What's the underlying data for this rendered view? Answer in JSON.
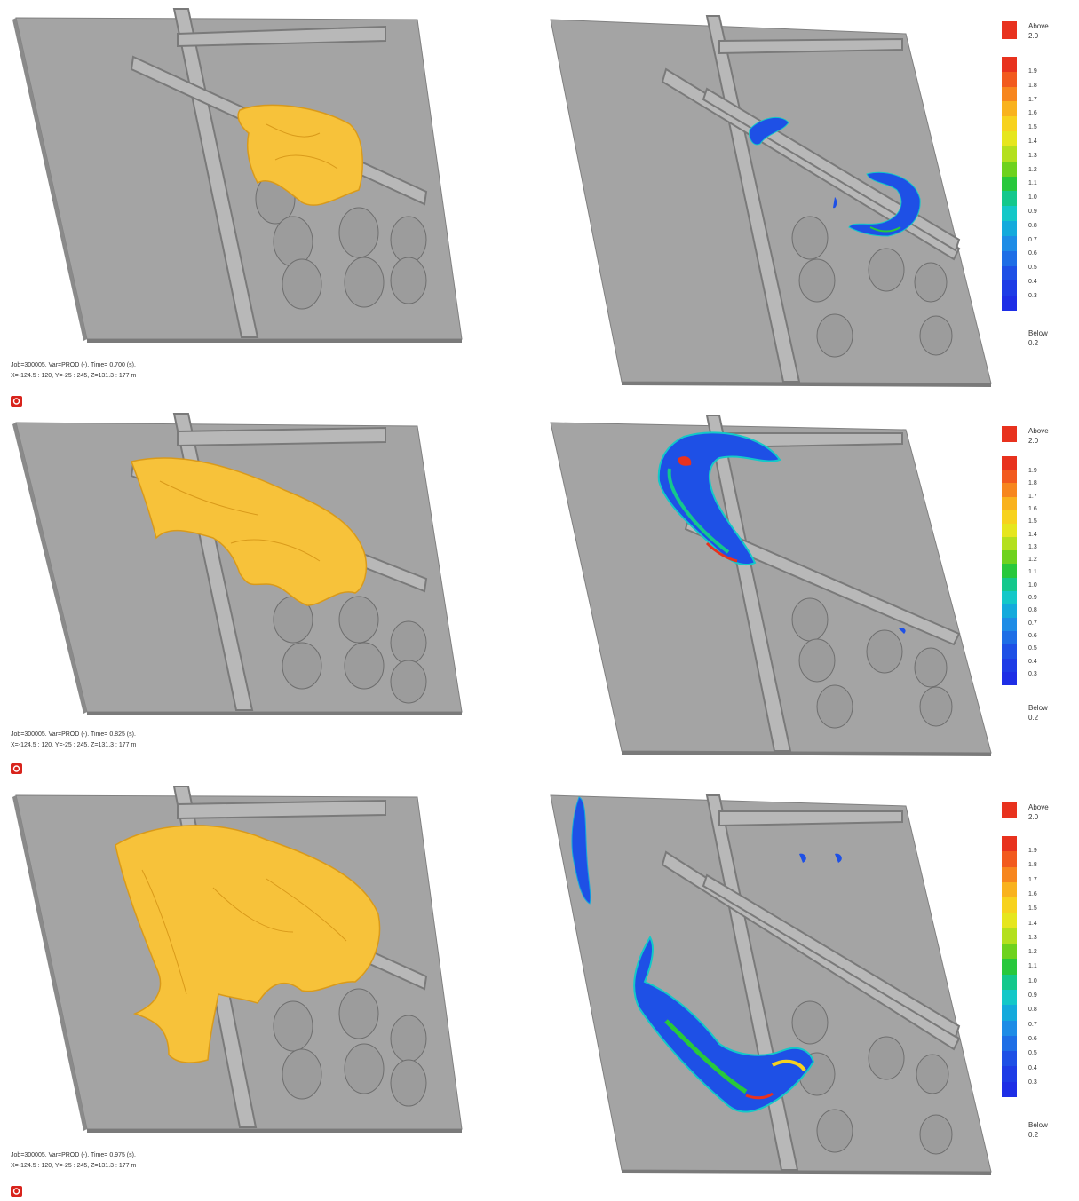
{
  "frames": [
    {
      "caption_line1": "Job=300005.  Var=PROD (-). Time=   0.700 (s).",
      "caption_line2": "X=-124.5 : 120, Y=-25 : 245, Z=131.3 : 177 m"
    },
    {
      "caption_line1": "Job=300005.  Var=PROD (-). Time=   0.825 (s).",
      "caption_line2": "X=-124.5 : 120, Y=-25 : 245, Z=131.3 : 177 m"
    },
    {
      "caption_line1": "Job=300005.  Var=PROD (-). Time=   0.975 (s).",
      "caption_line2": "X=-124.5 : 120, Y=-25 : 245, Z=131.3 : 177 m"
    }
  ],
  "legend": {
    "above_label": "Above",
    "above_value": "2.0",
    "below_label": "Below",
    "below_value": "0.2",
    "levels": [
      "1.9",
      "1.8",
      "1.7",
      "1.6",
      "1.5",
      "1.4",
      "1.3",
      "1.2",
      "1.1",
      "1.0",
      "0.9",
      "0.8",
      "0.7",
      "0.6",
      "0.5",
      "0.4",
      "0.3"
    ],
    "colors": [
      "#e8321e",
      "#f25a1e",
      "#f7861e",
      "#f9b21e",
      "#f7d21e",
      "#e6e61e",
      "#b4e01e",
      "#6ed21e",
      "#28c83c",
      "#14c88c",
      "#14c8c8",
      "#14aadc",
      "#1e8ce6",
      "#1e6ee6",
      "#1e50e6",
      "#1e3ce6",
      "#1e2ee6"
    ],
    "above_color": "#e8321e"
  },
  "colors": {
    "ground": "#9a9a9a",
    "ground_light": "#b4b4b4",
    "ground_dark": "#6e6e6e",
    "cloud": "#f7c23a",
    "cloud_shade": "#d99a1a"
  }
}
